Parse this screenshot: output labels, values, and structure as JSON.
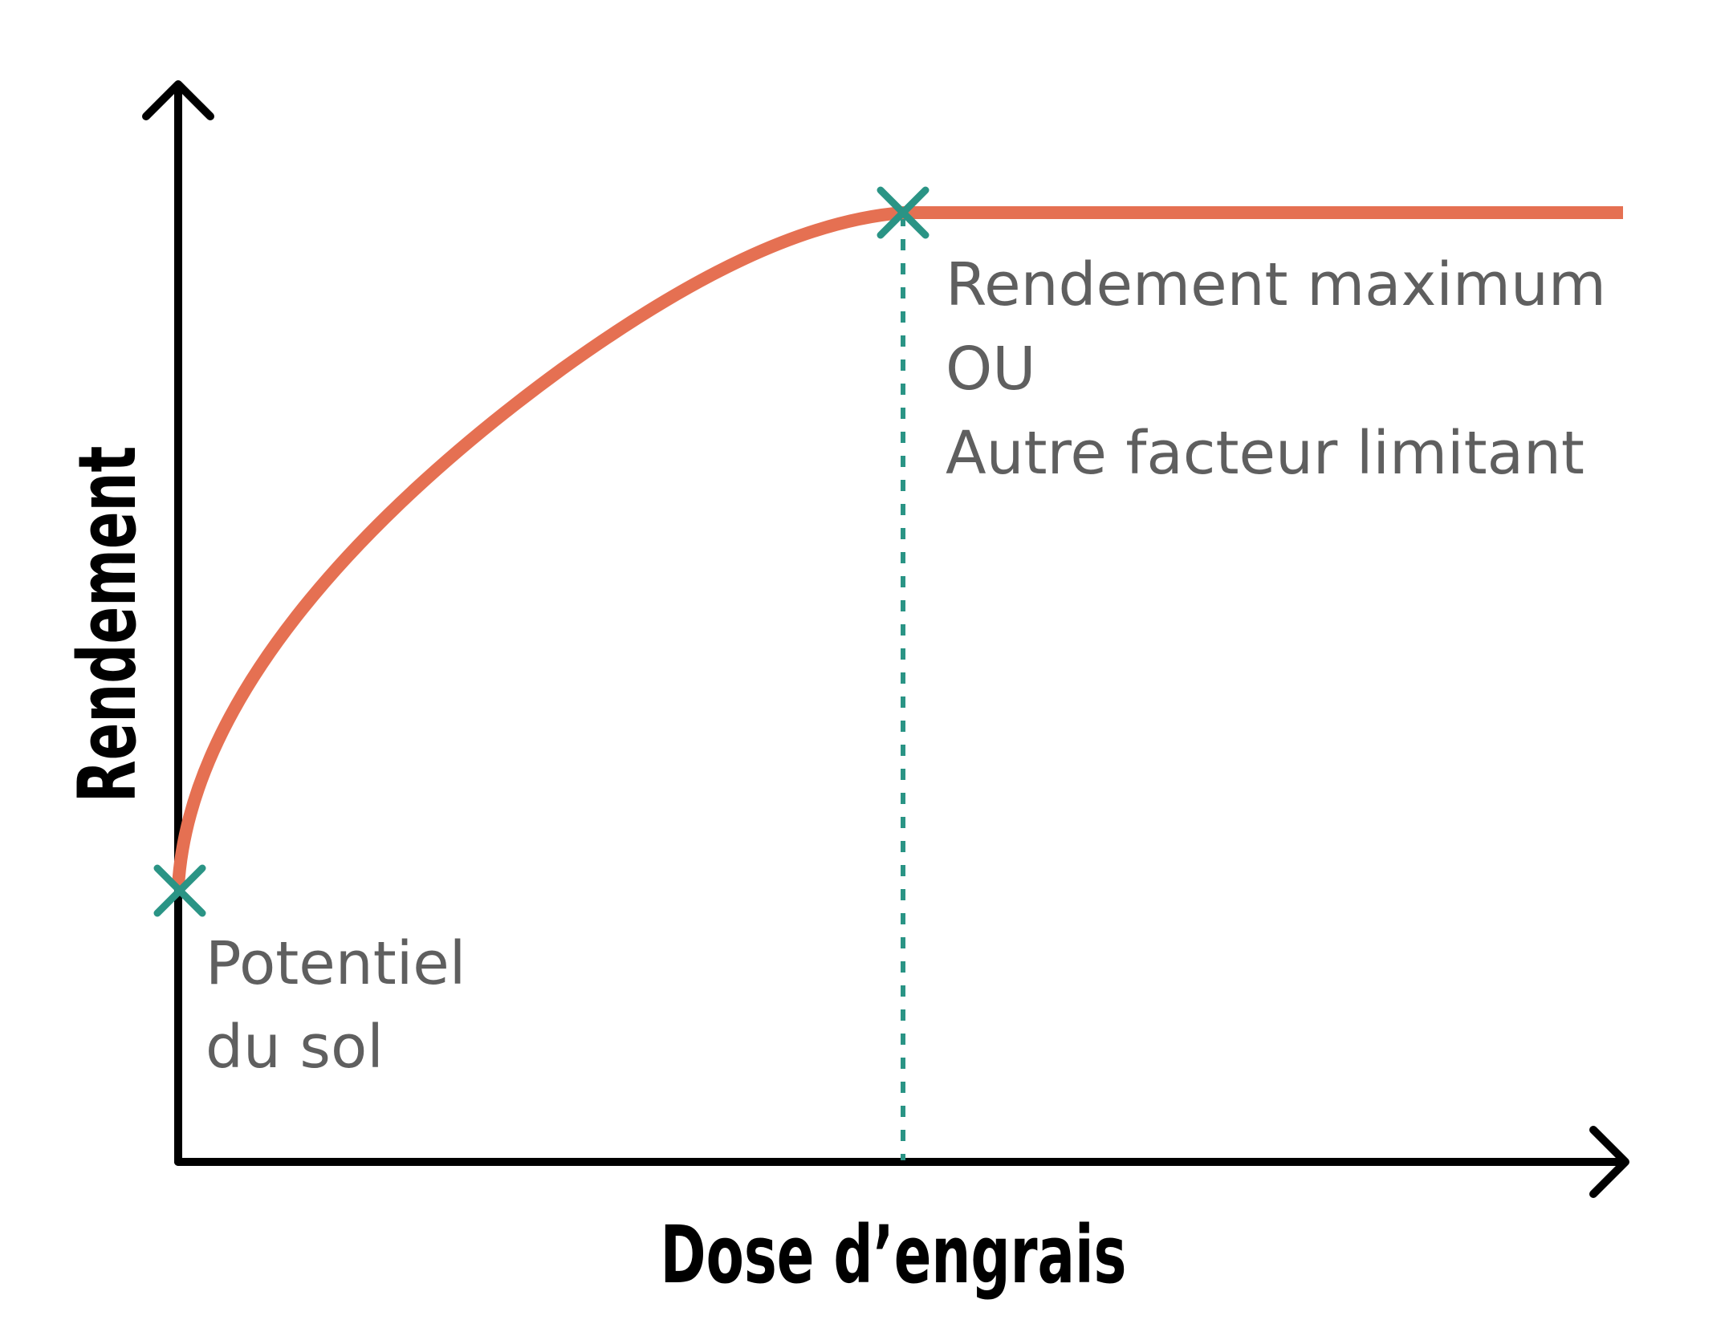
{
  "axes": {
    "x_label": "Dose d’engrais",
    "y_label": "Rendement"
  },
  "annotations": {
    "soil_potential": {
      "line1": "Potentiel",
      "line2": "du sol"
    },
    "max_yield": {
      "line1": "Rendement maximum",
      "line2": "OU",
      "line3": "Autre facteur limitant"
    }
  },
  "colors": {
    "curve": "#e57052",
    "marker": "#2a9485",
    "axis": "#000000",
    "annotation_text": "#5f5f5f"
  },
  "markers": [
    "cross-marker-soil-potential",
    "cross-marker-max-yield"
  ]
}
